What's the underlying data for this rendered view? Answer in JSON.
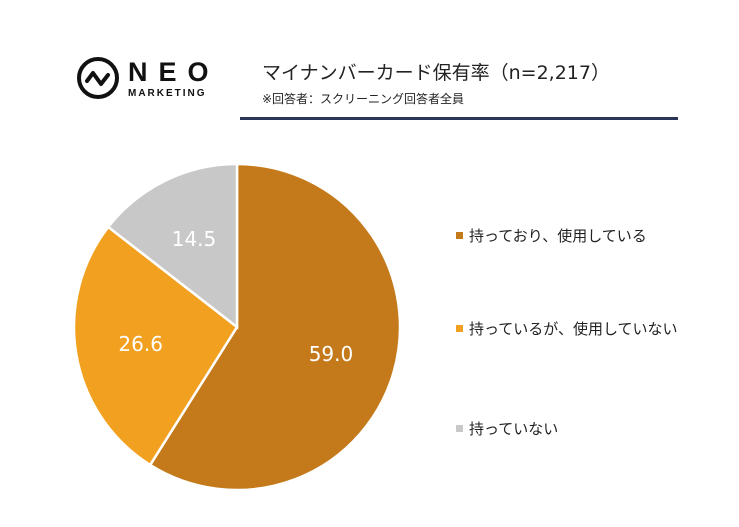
{
  "brand": {
    "name": "NEO",
    "sub": "MARKETING"
  },
  "header": {
    "title": "マイナンバーカード保有率（n=2,217）",
    "subtitle": "※回答者：スクリーニング回答者全員"
  },
  "chart_data": {
    "type": "pie",
    "title": "マイナンバーカード保有率（n=2,217）",
    "categories": [
      "持っており、使用している",
      "持っているが、使用していない",
      "持っていない"
    ],
    "values": [
      59.0,
      26.6,
      14.5
    ],
    "labels": [
      "59.0",
      "26.6",
      "14.5"
    ],
    "colors": [
      "#C47A1A",
      "#F2A020",
      "#C8C8C8"
    ],
    "label_colors": [
      "#ffffff",
      "#ffffff",
      "#ffffff"
    ],
    "start": "top",
    "direction": "clockwise",
    "legend": "right"
  }
}
